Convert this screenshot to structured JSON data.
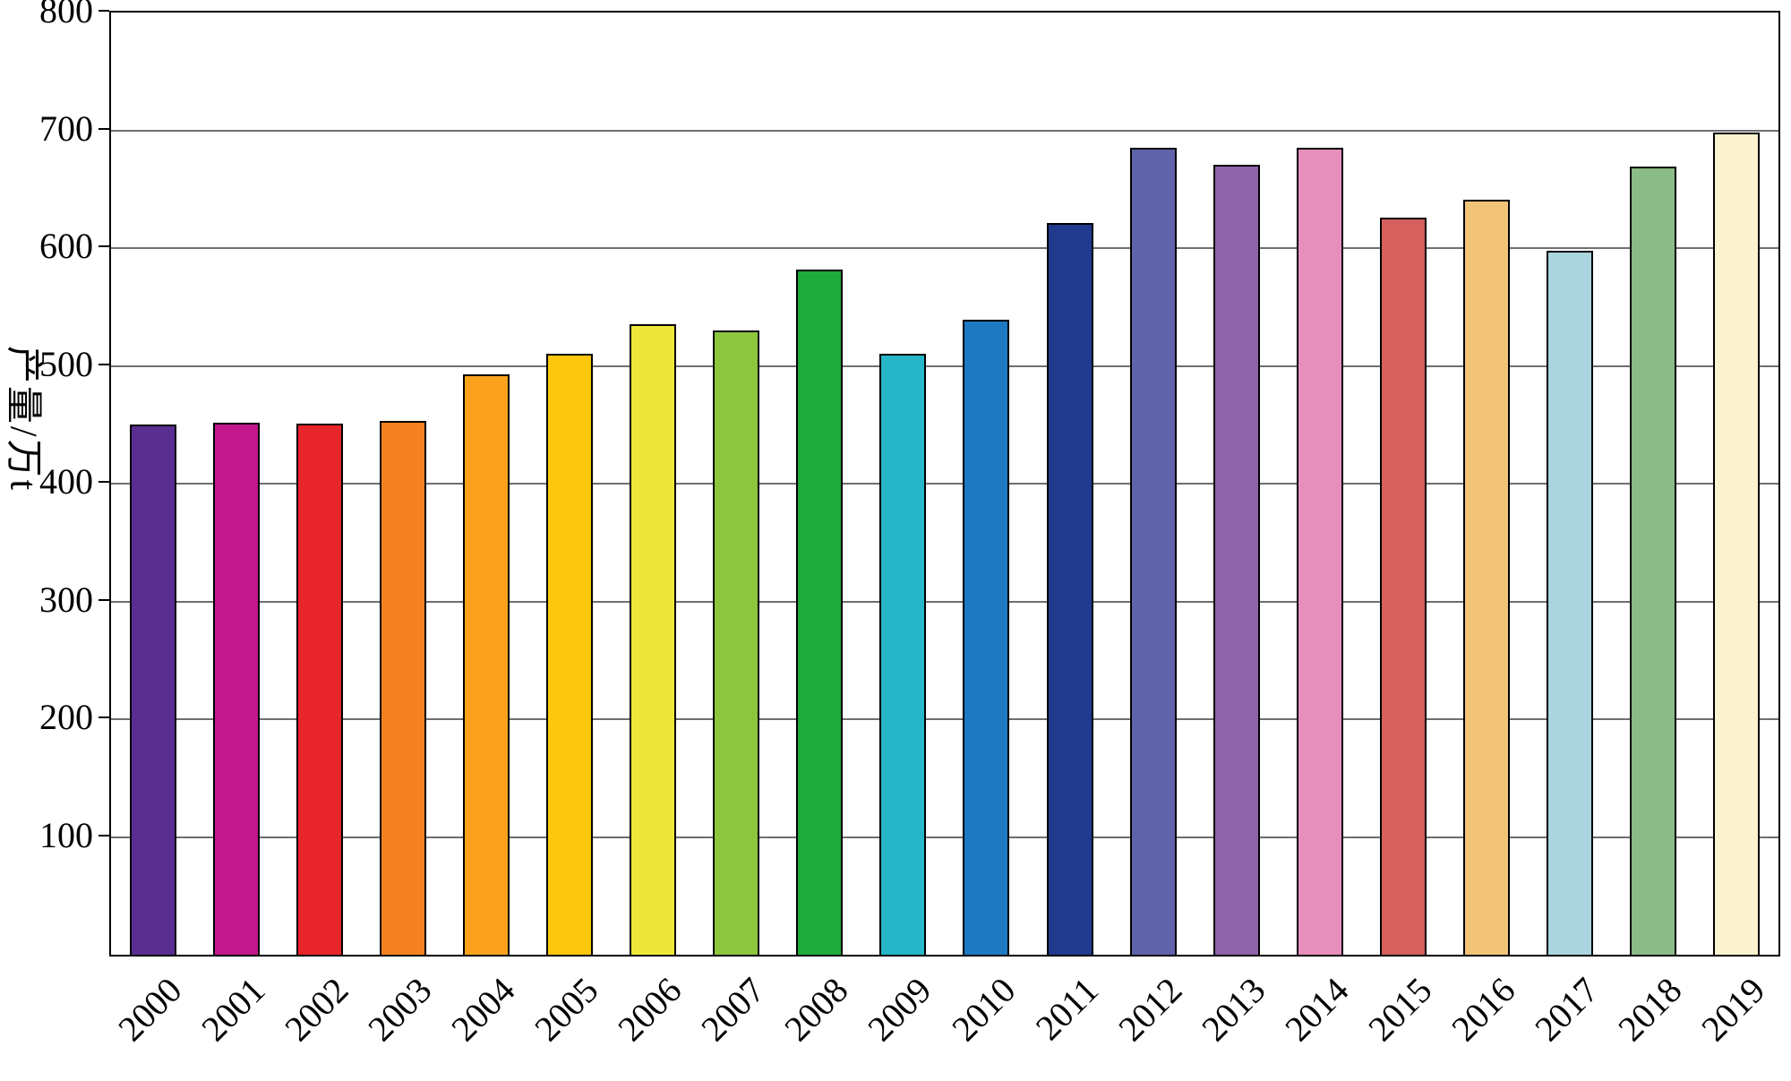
{
  "chart_data": {
    "type": "bar",
    "title": "",
    "xlabel": "",
    "ylabel": "产量/万t",
    "ylim": [
      0,
      800
    ],
    "yticks": [
      100,
      200,
      300,
      400,
      500,
      600,
      700,
      800
    ],
    "grid": true,
    "legend": "none",
    "categories": [
      "2000",
      "2001",
      "2002",
      "2003",
      "2004",
      "2005",
      "2006",
      "2007",
      "2008",
      "2009",
      "2010",
      "2011",
      "2012",
      "2013",
      "2014",
      "2015",
      "2016",
      "2017",
      "2018",
      "2019"
    ],
    "values": [
      450,
      452,
      451,
      453,
      493,
      510,
      535,
      530,
      582,
      510,
      539,
      621,
      685,
      671,
      685,
      626,
      641,
      598,
      669,
      698
    ],
    "bar_colors": [
      "#5a2e91",
      "#c2188c",
      "#e8252b",
      "#f58220",
      "#faa21b",
      "#fdc70e",
      "#efe63a",
      "#8cc63f",
      "#1faa3c",
      "#27b5c8",
      "#1e79c2",
      "#203a8d",
      "#5f63aa",
      "#8f63a9",
      "#e78fbc",
      "#d5605c",
      "#f2c478",
      "#aad4de",
      "#8bbb86",
      "#faf3cd"
    ],
    "bar_border_color": "#000000",
    "gridline_color": "#6e6e6e"
  }
}
